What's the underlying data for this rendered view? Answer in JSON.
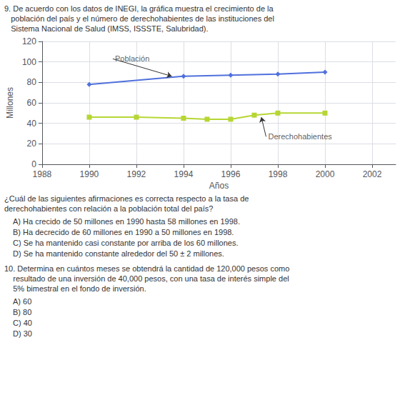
{
  "chart_data": {
    "type": "line",
    "xlabel": "Años",
    "ylabel": "Millones",
    "xlim": [
      1988,
      2003
    ],
    "ylim": [
      0,
      120
    ],
    "xticks": [
      1988,
      1990,
      1992,
      1994,
      1996,
      1998,
      2000,
      2002
    ],
    "yticks": [
      0,
      20,
      40,
      60,
      80,
      100,
      120
    ],
    "grid": true,
    "series": [
      {
        "x": [
          1990,
          1994,
          1996,
          1998,
          2000
        ],
        "values": [
          78,
          86,
          87,
          88,
          90
        ],
        "marker": "diamond"
      },
      {
        "x": [
          1990,
          1992,
          1994,
          1995,
          1996,
          1997,
          1998,
          2000
        ],
        "values": [
          46,
          46,
          45,
          44,
          44,
          48,
          50,
          50
        ],
        "marker": "square"
      }
    ],
    "annotations": [
      {
        "text": "Población",
        "xy": [
          1993.5,
          86
        ],
        "xytext": [
          1991.0,
          103
        ]
      },
      {
        "text": "Derechohabientes",
        "xy": [
          1997.3,
          46
        ],
        "xytext": [
          1997.5,
          27
        ]
      }
    ],
    "question9": [
      "9. De acuerdo con los datos de INEGI, la gráfica muestra el crecimiento de la",
      "   población del país y el número de derechohabientes de las instituciones del",
      "   Sistema Nacional de Salud (IMSS, ISSSTE, Salubridad)."
    ],
    "question9_sub": [
      "¿Cuál de las siguientes afirmaciones es correcta respecto a la tasa de",
      "derechohabientes con relación a la población total del país?"
    ],
    "answers9": [
      "A) Ha crecido de 50 millones en 1990 hasta 58 millones en 1998.",
      "B) Ha decrecido de 60 millones en 1990 a 50 millones en 1998.",
      "C) Se ha mantenido casi constante por arriba de los 60 millones.",
      "D) Se ha mantenido constante alrededor del 50 ± 2 millones."
    ],
    "question10": [
      "10. Determina en cuántos meses se obtendrá la cantidad de 120,000 pesos como",
      "    resultado de una inversión de 40,000 pesos, con una tasa de interés simple del",
      "    5% bimestral en el fondo de inversión."
    ],
    "answers10": [
      "A) 60",
      "B) 80",
      "C) 40",
      "D) 30"
    ]
  }
}
